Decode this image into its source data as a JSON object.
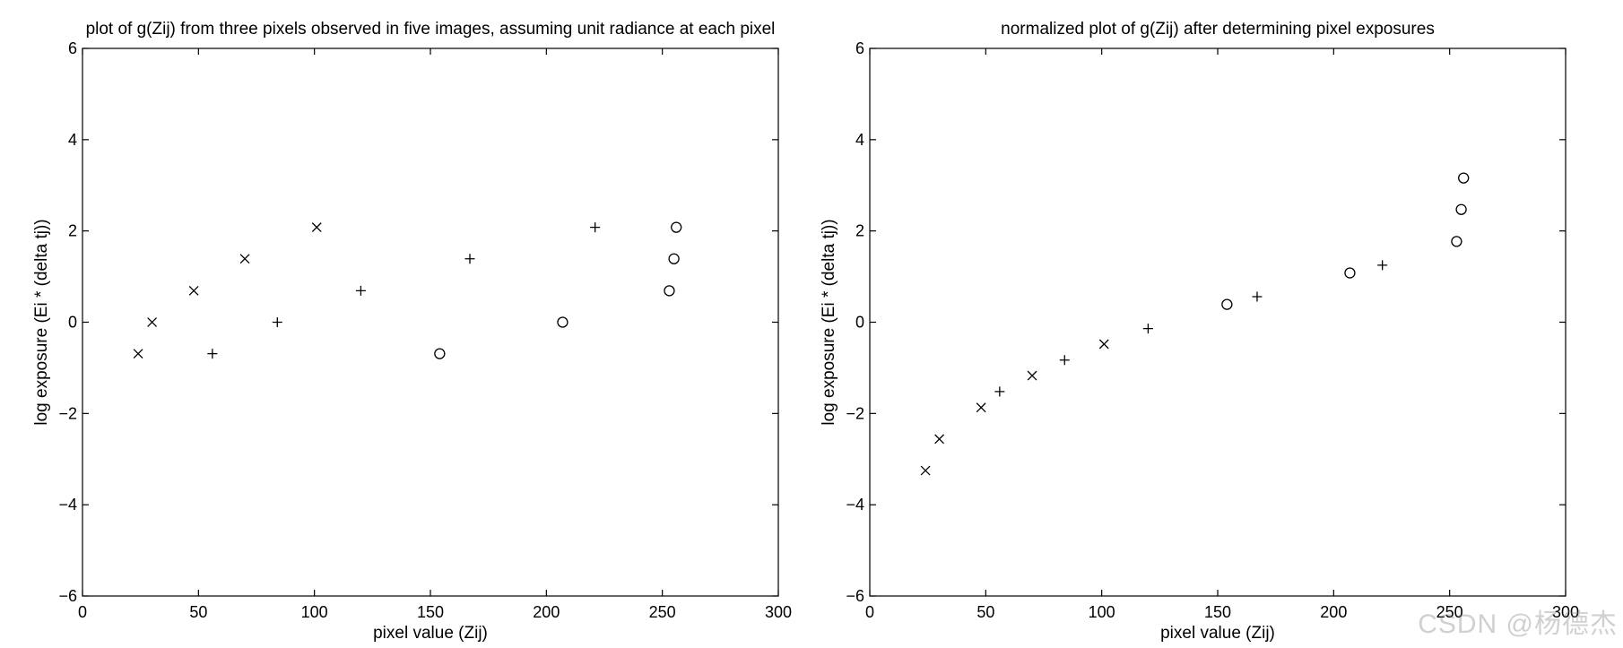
{
  "watermark": "CSDN @杨德杰",
  "chart_data": [
    {
      "type": "scatter",
      "title": "plot of g(Zij) from three pixels observed in five images, assuming unit radiance at each pixel",
      "xlabel": "pixel value (Zij)",
      "ylabel": "log exposure (Ei * (delta tj))",
      "xlim": [
        0,
        300
      ],
      "ylim": [
        -6,
        6
      ],
      "x_ticks": [
        "0",
        "50",
        "100",
        "150",
        "200",
        "250",
        "300"
      ],
      "y_ticks": [
        "−6",
        "−4",
        "−2",
        "0",
        "2",
        "4",
        "6"
      ],
      "grid": false,
      "series": [
        {
          "marker": "x",
          "x": [
            24,
            30,
            48,
            70,
            101
          ],
          "y": [
            -0.69,
            0.0,
            0.69,
            1.39,
            2.08
          ]
        },
        {
          "marker": "+",
          "x": [
            56,
            84,
            120,
            167,
            221
          ],
          "y": [
            -0.69,
            0.0,
            0.69,
            1.39,
            2.08
          ]
        },
        {
          "marker": "o",
          "x": [
            154,
            207,
            253,
            255,
            256
          ],
          "y": [
            -0.69,
            0.0,
            0.69,
            1.39,
            2.08
          ]
        }
      ]
    },
    {
      "type": "scatter",
      "title": "normalized plot of g(Zij) after determining pixel exposures",
      "xlabel": "pixel value (Zij)",
      "ylabel": "log exposure (Ei * (delta tj))",
      "xlim": [
        0,
        300
      ],
      "ylim": [
        -6,
        6
      ],
      "x_ticks": [
        "0",
        "50",
        "100",
        "150",
        "200",
        "250",
        "300"
      ],
      "y_ticks": [
        "−6",
        "−4",
        "−2",
        "0",
        "2",
        "4",
        "6"
      ],
      "grid": false,
      "series": [
        {
          "marker": "x",
          "x": [
            24,
            30,
            48,
            70,
            101
          ],
          "y": [
            -3.25,
            -2.56,
            -1.87,
            -1.17,
            -0.48
          ]
        },
        {
          "marker": "+",
          "x": [
            56,
            84,
            120,
            167,
            221
          ],
          "y": [
            -1.52,
            -0.83,
            -0.14,
            0.56,
            1.25
          ]
        },
        {
          "marker": "o",
          "x": [
            154,
            207,
            253,
            255,
            256
          ],
          "y": [
            0.39,
            1.08,
            1.77,
            2.47,
            3.16
          ]
        }
      ]
    }
  ]
}
